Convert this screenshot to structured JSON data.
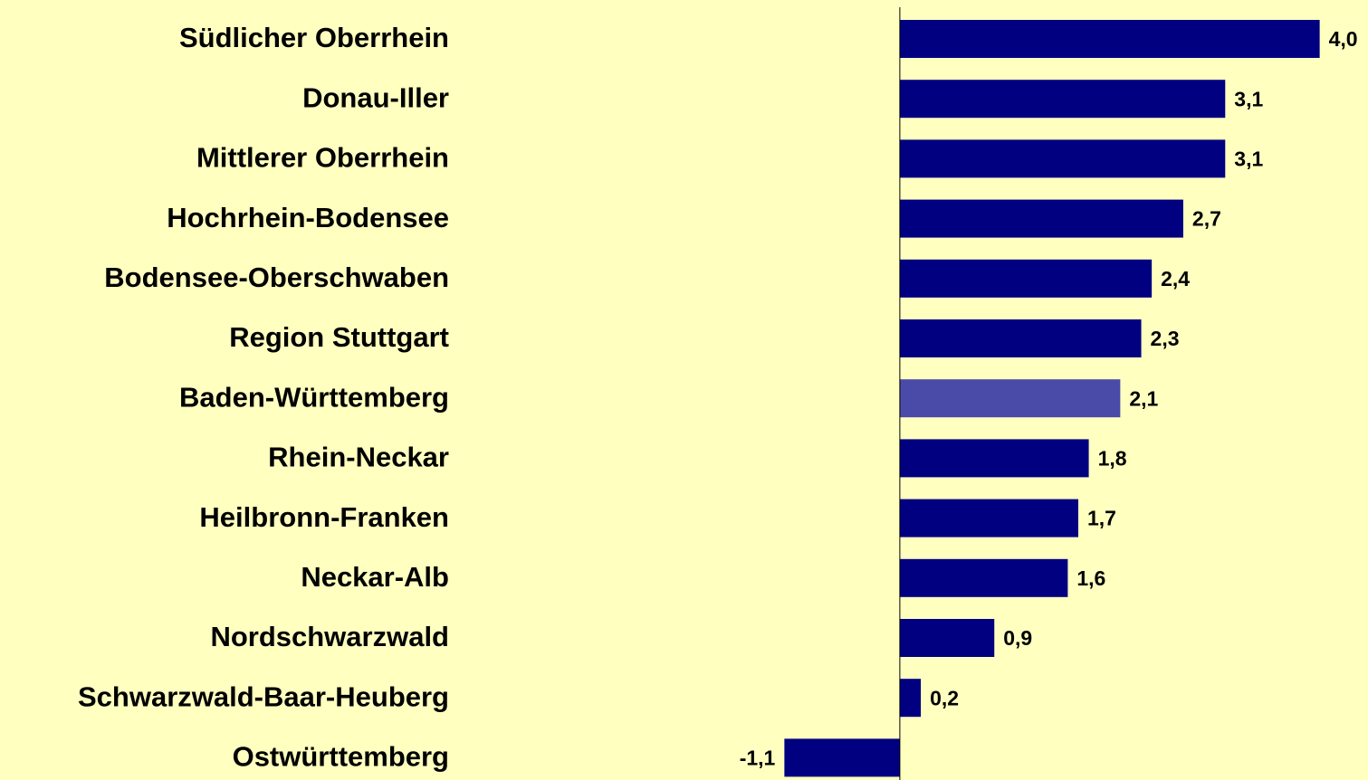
{
  "chart_data": {
    "type": "hbar",
    "categories": [
      "Südlicher Oberrhein",
      "Donau-Iller",
      "Mittlerer Oberrhein",
      "Hochrhein-Bodensee",
      "Bodensee-Oberschwaben",
      "Region Stuttgart",
      "Baden-Württemberg",
      "Rhein-Neckar",
      "Heilbronn-Franken",
      "Neckar-Alb",
      "Nordschwarzwald",
      "Schwarzwald-Baar-Heuberg",
      "Ostwürttemberg"
    ],
    "values": [
      4.0,
      3.1,
      3.1,
      2.7,
      2.4,
      2.3,
      2.1,
      1.8,
      1.7,
      1.6,
      0.9,
      0.2,
      -1.1
    ],
    "value_labels": [
      "4,0",
      "3,1",
      "3,1",
      "2,7",
      "2,4",
      "2,3",
      "2,1",
      "1,8",
      "1,7",
      "1,6",
      "0,9",
      "0,2",
      "-1,1"
    ],
    "colors": [
      "#000080",
      "#000080",
      "#000080",
      "#000080",
      "#000080",
      "#000080",
      "#4a4aa8",
      "#000080",
      "#000080",
      "#000080",
      "#000080",
      "#000080",
      "#000080"
    ],
    "xlim": [
      -1.5,
      4.4
    ]
  }
}
